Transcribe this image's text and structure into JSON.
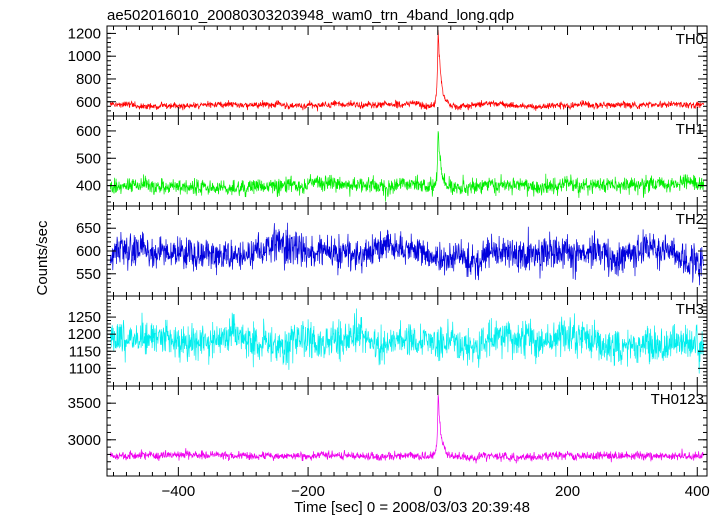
{
  "chart_data": {
    "type": "line",
    "title": "ae502016010_20080303203948_wam0_trn_4band_long.qdp",
    "xlabel": "Time [sec] 0 = 2008/03/03 20:39:48",
    "ylabel": "Counts/sec",
    "xlim": [
      -510,
      415
    ],
    "x_ticks": [
      -400,
      -200,
      0,
      200,
      400
    ],
    "x_tick_labels": [
      "−400",
      "−200",
      "0",
      "200",
      "400"
    ],
    "grid": false,
    "panels": [
      {
        "name": "TH0",
        "color": "#ff0000",
        "ylim": [
          510,
          1230
        ],
        "yticks": [
          600,
          800,
          1000,
          1200
        ],
        "ytick_labels": [
          "600",
          "800",
          "1000",
          "1200"
        ],
        "baseline": 575,
        "noise": 20,
        "peak": 1220
      },
      {
        "name": "TH1",
        "color": "#00ee00",
        "ylim": [
          340,
          640
        ],
        "yticks": [
          400,
          500,
          600
        ],
        "ytick_labels": [
          "400",
          "500",
          "600"
        ],
        "baseline": 400,
        "noise": 20,
        "peak": 620
      },
      {
        "name": "TH2",
        "color": "#0000dd",
        "ylim": [
          510,
          690
        ],
        "yticks": [
          550,
          600,
          650
        ],
        "ytick_labels": [
          "550",
          "600",
          "650"
        ],
        "baseline": 595,
        "noise": 25,
        "peak": 0
      },
      {
        "name": "TH3",
        "color": "#00eeee",
        "ylim": [
          1060,
          1300
        ],
        "yticks": [
          1100,
          1150,
          1200,
          1250
        ],
        "ytick_labels": [
          "1100",
          "1150",
          "1200",
          "1250"
        ],
        "baseline": 1178,
        "noise": 35,
        "peak": 0
      },
      {
        "name": "TH0123",
        "color": "#ee00ee",
        "ylim": [
          2560,
          3680
        ],
        "yticks": [
          3000,
          3500
        ],
        "ytick_labels": [
          "3000",
          "3500"
        ],
        "baseline": 2775,
        "noise": 38,
        "peak": 3620
      }
    ]
  }
}
